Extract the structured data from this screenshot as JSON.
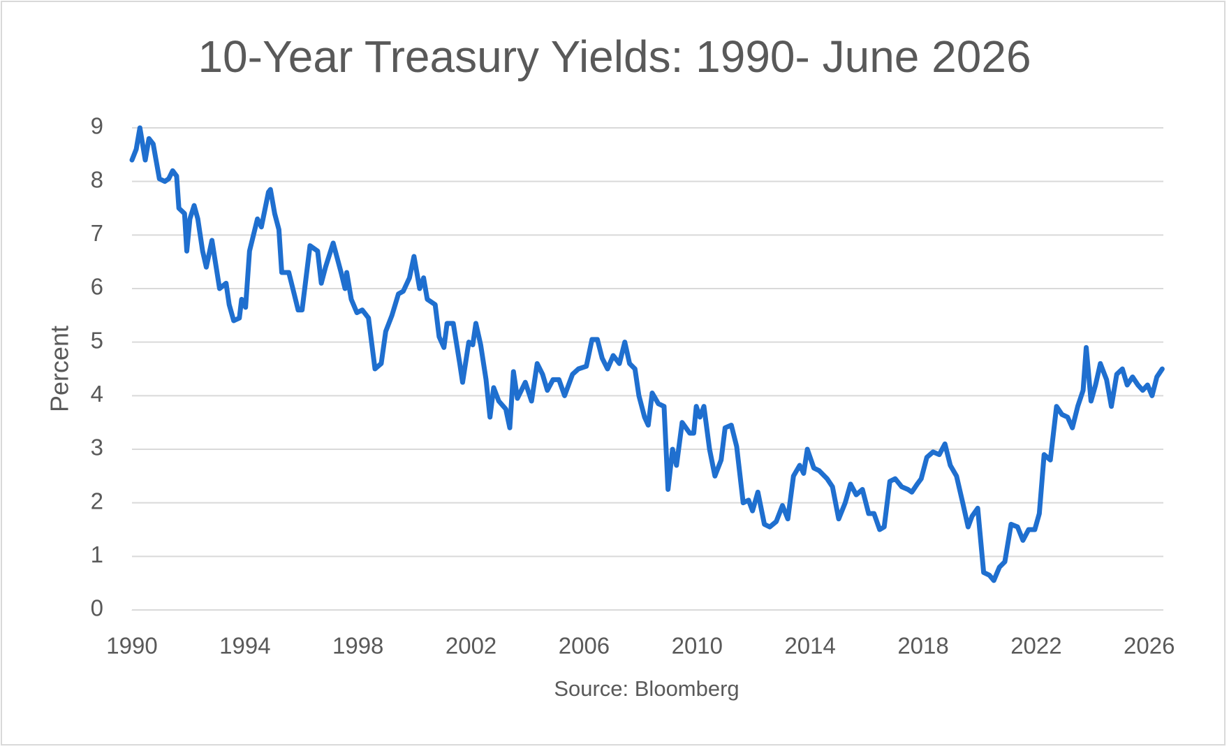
{
  "chart_data": {
    "type": "line",
    "title": "10-Year Treasury Yields: 1990- June 2026",
    "y_label": "Percent",
    "source": "Source: Bloomberg",
    "xlim": [
      1990,
      2026.5
    ],
    "xticks": [
      1990,
      1994,
      1998,
      2002,
      2006,
      2010,
      2014,
      2018,
      2022,
      2026
    ],
    "ylim": [
      0,
      9
    ],
    "yticks": [
      0,
      1,
      2,
      3,
      4,
      5,
      6,
      7,
      8,
      9
    ],
    "grid": true,
    "series": [
      {
        "name": "10-Year Treasury Yield",
        "color": "#1f6fcf",
        "x": [
          1990.0,
          1990.15,
          1990.28,
          1990.47,
          1990.6,
          1990.75,
          1990.97,
          1991.16,
          1991.3,
          1991.44,
          1991.58,
          1991.66,
          1991.86,
          1991.94,
          1992.05,
          1992.2,
          1992.33,
          1992.5,
          1992.63,
          1992.83,
          1993.1,
          1993.33,
          1993.44,
          1993.6,
          1993.8,
          1993.88,
          1994.02,
          1994.16,
          1994.44,
          1994.58,
          1994.83,
          1994.9,
          1995.05,
          1995.2,
          1995.3,
          1995.55,
          1995.74,
          1995.88,
          1996.02,
          1996.3,
          1996.57,
          1996.7,
          1996.85,
          1997.12,
          1997.4,
          1997.54,
          1997.6,
          1997.76,
          1997.96,
          1998.15,
          1998.37,
          1998.6,
          1998.82,
          1998.98,
          1999.2,
          1999.43,
          1999.6,
          1999.82,
          1999.98,
          2000.18,
          2000.32,
          2000.45,
          2000.73,
          2000.87,
          2001.04,
          2001.15,
          2001.37,
          2001.6,
          2001.7,
          2001.92,
          2002.06,
          2002.17,
          2002.34,
          2002.53,
          2002.67,
          2002.8,
          2002.98,
          2003.23,
          2003.37,
          2003.5,
          2003.64,
          2003.92,
          2004.14,
          2004.34,
          2004.53,
          2004.7,
          2004.9,
          2005.11,
          2005.31,
          2005.59,
          2005.8,
          2006.08,
          2006.28,
          2006.47,
          2006.64,
          2006.83,
          2007.03,
          2007.25,
          2007.44,
          2007.61,
          2007.8,
          2007.94,
          2008.14,
          2008.27,
          2008.41,
          2008.63,
          2008.83,
          2008.97,
          2009.13,
          2009.27,
          2009.47,
          2009.74,
          2009.88,
          2009.97,
          2010.1,
          2010.24,
          2010.44,
          2010.63,
          2010.85,
          2010.99,
          2011.21,
          2011.4,
          2011.63,
          2011.82,
          2011.96,
          2012.15,
          2012.38,
          2012.57,
          2012.8,
          2013.02,
          2013.21,
          2013.41,
          2013.63,
          2013.77,
          2013.9,
          2014.13,
          2014.32,
          2014.6,
          2014.79,
          2015.01,
          2015.24,
          2015.43,
          2015.63,
          2015.85,
          2016.07,
          2016.26,
          2016.46,
          2016.62,
          2016.82,
          2017.01,
          2017.24,
          2017.46,
          2017.6,
          2017.79,
          2017.93,
          2018.13,
          2018.35,
          2018.57,
          2018.77,
          2018.96,
          2019.18,
          2019.4,
          2019.59,
          2019.73,
          2019.93,
          2020.14,
          2020.34,
          2020.5,
          2020.7,
          2020.89,
          2021.11,
          2021.34,
          2021.53,
          2021.73,
          2021.95,
          2022.11,
          2022.28,
          2022.5,
          2022.72,
          2022.91,
          2023.11,
          2023.28,
          2023.47,
          2023.66,
          2023.77,
          2023.94,
          2024.1,
          2024.27,
          2024.49,
          2024.66,
          2024.85,
          2025.05,
          2025.22,
          2025.41,
          2025.6,
          2025.77,
          2025.94,
          2026.1,
          2026.27,
          2026.46
        ],
        "values": [
          8.4,
          8.6,
          9.0,
          8.4,
          8.8,
          8.7,
          8.05,
          8.0,
          8.05,
          8.2,
          8.1,
          7.5,
          7.4,
          6.7,
          7.3,
          7.55,
          7.3,
          6.7,
          6.4,
          6.9,
          6.0,
          6.1,
          5.7,
          5.4,
          5.45,
          5.8,
          5.65,
          6.7,
          7.3,
          7.15,
          7.8,
          7.85,
          7.4,
          7.1,
          6.3,
          6.3,
          5.9,
          5.6,
          5.6,
          6.8,
          6.7,
          6.1,
          6.4,
          6.85,
          6.3,
          6.0,
          6.3,
          5.8,
          5.55,
          5.6,
          5.45,
          4.5,
          4.6,
          5.2,
          5.5,
          5.9,
          5.95,
          6.2,
          6.6,
          6.0,
          6.2,
          5.8,
          5.7,
          5.1,
          4.9,
          5.35,
          5.35,
          4.6,
          4.25,
          5.0,
          4.95,
          5.35,
          4.95,
          4.3,
          3.6,
          4.15,
          3.9,
          3.75,
          3.4,
          4.45,
          3.95,
          4.25,
          3.9,
          4.6,
          4.4,
          4.1,
          4.3,
          4.3,
          4.0,
          4.4,
          4.5,
          4.55,
          5.05,
          5.05,
          4.7,
          4.5,
          4.75,
          4.6,
          5.0,
          4.6,
          4.5,
          4.0,
          3.6,
          3.45,
          4.05,
          3.85,
          3.8,
          2.25,
          3.0,
          2.7,
          3.5,
          3.3,
          3.3,
          3.8,
          3.6,
          3.8,
          3.0,
          2.5,
          2.8,
          3.4,
          3.45,
          3.05,
          2.0,
          2.05,
          1.85,
          2.2,
          1.6,
          1.55,
          1.65,
          1.95,
          1.7,
          2.5,
          2.7,
          2.55,
          3.0,
          2.65,
          2.6,
          2.45,
          2.3,
          1.7,
          2.0,
          2.35,
          2.15,
          2.25,
          1.8,
          1.8,
          1.5,
          1.55,
          2.4,
          2.45,
          2.3,
          2.25,
          2.2,
          2.35,
          2.45,
          2.85,
          2.95,
          2.9,
          3.1,
          2.7,
          2.5,
          2.0,
          1.55,
          1.75,
          1.9,
          0.7,
          0.65,
          0.55,
          0.8,
          0.9,
          1.6,
          1.55,
          1.3,
          1.5,
          1.5,
          1.8,
          2.9,
          2.8,
          3.8,
          3.65,
          3.6,
          3.4,
          3.8,
          4.1,
          4.9,
          3.9,
          4.2,
          4.6,
          4.3,
          3.8,
          4.4,
          4.5,
          4.2,
          4.35,
          4.2,
          4.1,
          4.2,
          4.0,
          4.35,
          4.5
        ]
      }
    ]
  }
}
